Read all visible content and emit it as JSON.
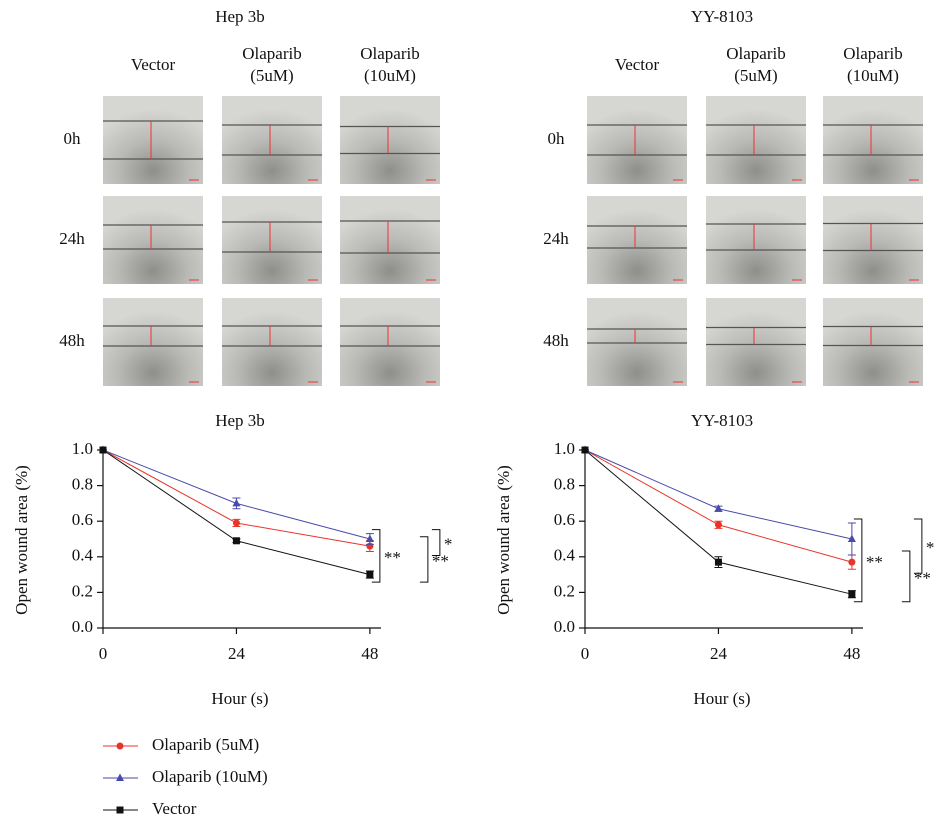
{
  "image_panels": [
    {
      "title": "Hep 3b",
      "columns": [
        "Vector",
        "Olaparib (5uM)",
        "Olaparib (10uM)"
      ],
      "rows": [
        "0h",
        "24h",
        "48h"
      ]
    },
    {
      "title": "YY-8103",
      "columns": [
        "Vector",
        "Olaparib (5uM)",
        "Olaparib (10uM)"
      ],
      "rows": [
        "0h",
        "24h",
        "48h"
      ]
    }
  ],
  "chart_data": [
    {
      "type": "line",
      "title": "Hep 3b",
      "x_label": "Hour (s)",
      "y_label": "Open wound area (%)",
      "x": [
        0,
        24,
        48
      ],
      "xlim": [
        0,
        50
      ],
      "xticks": [
        0,
        24,
        48
      ],
      "ylim": [
        0,
        1
      ],
      "yticks": [
        {
          "value": 0,
          "label": "0.0"
        },
        0.2,
        0.4,
        0.6,
        0.8,
        {
          "value": 1,
          "label": "1.0"
        }
      ],
      "series": [
        {
          "name": "Olaparib (5uM)",
          "color": "#e8352b",
          "marker": "circle",
          "values": [
            1.0,
            0.59,
            0.46
          ],
          "errors": [
            0,
            0.02,
            0.03
          ]
        },
        {
          "name": "Olaparib (10uM)",
          "color": "#4a4aa8",
          "marker": "triangle",
          "values": [
            1.0,
            0.7,
            0.5
          ],
          "errors": [
            0,
            0.03,
            0.03
          ]
        },
        {
          "name": "Vector",
          "color": "#111111",
          "marker": "square",
          "values": [
            1.0,
            0.49,
            0.3
          ],
          "errors": [
            0,
            0.01,
            0.02
          ]
        }
      ],
      "annotations": [
        "*",
        "**",
        "**"
      ]
    },
    {
      "type": "line",
      "title": "YY-8103",
      "x_label": "Hour (s)",
      "y_label": "Open wound area (%)",
      "x": [
        0,
        24,
        48
      ],
      "xlim": [
        0,
        50
      ],
      "xticks": [
        0,
        24,
        48
      ],
      "ylim": [
        0,
        1
      ],
      "yticks": [
        {
          "value": 0,
          "label": "0.0"
        },
        0.2,
        0.4,
        0.6,
        0.8,
        {
          "value": 1,
          "label": "1.0"
        }
      ],
      "series": [
        {
          "name": "Olaparib (5uM)",
          "color": "#e8352b",
          "marker": "circle",
          "values": [
            1.0,
            0.58,
            0.37
          ],
          "errors": [
            0,
            0.02,
            0.04
          ]
        },
        {
          "name": "Olaparib (10uM)",
          "color": "#4a4aa8",
          "marker": "triangle",
          "values": [
            1.0,
            0.67,
            0.5
          ],
          "errors": [
            0,
            0.015,
            0.09
          ]
        },
        {
          "name": "Vector",
          "color": "#111111",
          "marker": "square",
          "values": [
            1.0,
            0.37,
            0.19
          ],
          "errors": [
            0,
            0.03,
            0.02
          ]
        }
      ],
      "annotations": [
        "*",
        "**",
        "**"
      ]
    }
  ]
}
